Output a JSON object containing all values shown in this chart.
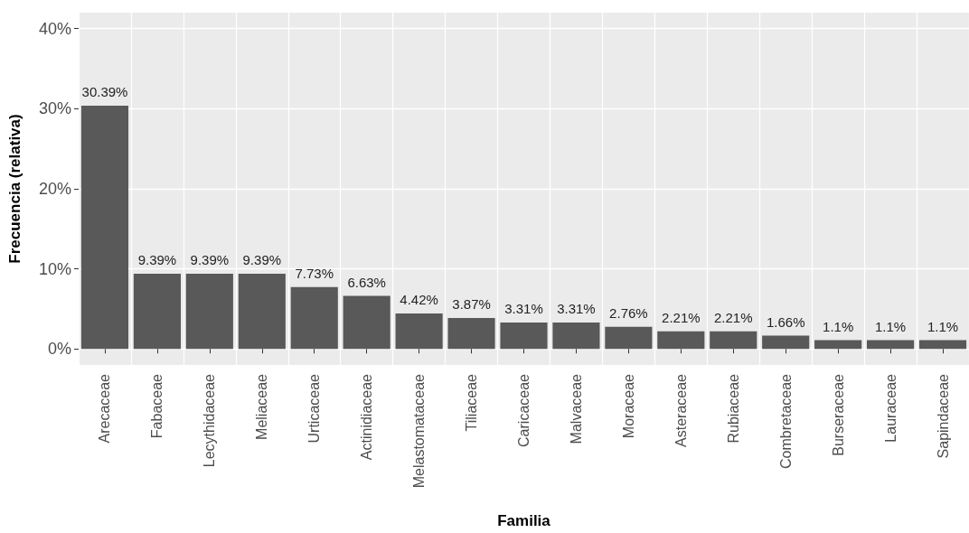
{
  "chart_data": {
    "type": "bar",
    "xlabel": "Familia",
    "ylabel": "Frecuencia (relativa)",
    "categories": [
      "Arecaceae",
      "Fabaceae",
      "Lecythidaceae",
      "Meliaceae",
      "Urticaceae",
      "Actinidiaceae",
      "Melastomataceae",
      "Tiliaceae",
      "Caricaceae",
      "Malvaceae",
      "Moraceae",
      "Asteraceae",
      "Rubiaceae",
      "Combretaceae",
      "Burseraceae",
      "Lauraceae",
      "Sapindaceae"
    ],
    "values": [
      30.39,
      9.39,
      9.39,
      9.39,
      7.73,
      6.63,
      4.42,
      3.87,
      3.31,
      3.31,
      2.76,
      2.21,
      2.21,
      1.66,
      1.1,
      1.1,
      1.1
    ],
    "value_labels": [
      "30.39%",
      "9.39%",
      "9.39%",
      "9.39%",
      "7.73%",
      "6.63%",
      "4.42%",
      "3.87%",
      "3.31%",
      "3.31%",
      "2.76%",
      "2.21%",
      "2.21%",
      "1.66%",
      "1.1%",
      "1.1%",
      "1.1%"
    ],
    "color": "#595959",
    "ylim": [
      -2,
      42
    ],
    "yticks": [
      {
        "value": 0,
        "label": "0%"
      },
      {
        "value": 10,
        "label": "10%"
      },
      {
        "value": 20,
        "label": "20%"
      },
      {
        "value": 30,
        "label": "30%"
      },
      {
        "value": 40,
        "label": "40%"
      }
    ],
    "grid": true
  }
}
